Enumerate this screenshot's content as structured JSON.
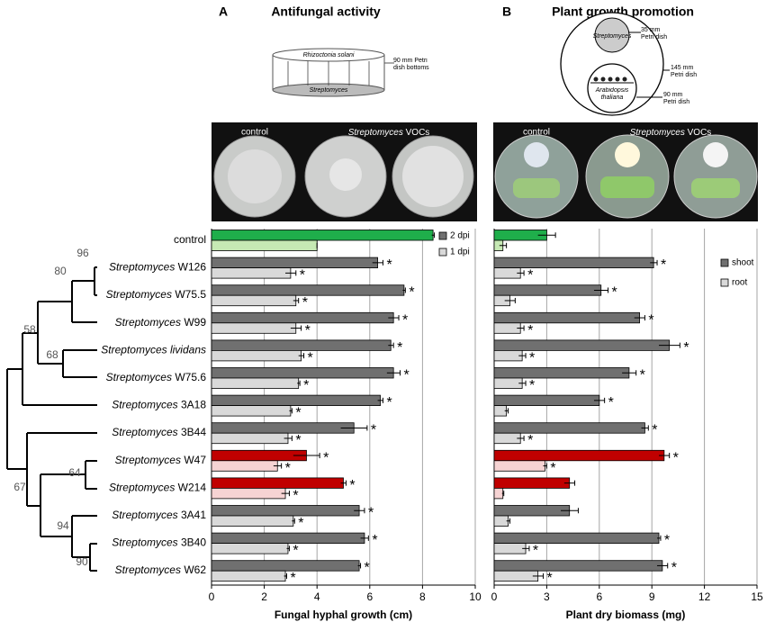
{
  "chart_data": [
    {
      "type": "bar",
      "orientation": "horizontal",
      "panel_label": "A",
      "title": "Antifungal activity",
      "x_label": "Fungal hyphal growth (cm)",
      "categories": [
        "control",
        "Streptomyces W126",
        "Streptomyces W75.5",
        "Streptomyces W99",
        "Streptomyces lividans",
        "Streptomyces W75.6",
        "Streptomyces 3A18",
        "Streptomyces 3B44",
        "Streptomyces W47",
        "Streptomyces W214",
        "Streptomyces 3A41",
        "Streptomyces 3B40",
        "Streptomyces W62"
      ],
      "series": [
        {
          "name": "2 dpi",
          "color": "#707070",
          "colors": [
            "#1fae4b",
            "#707070",
            "#707070",
            "#707070",
            "#707070",
            "#707070",
            "#707070",
            "#707070",
            "#c00000",
            "#c00000",
            "#707070",
            "#707070",
            "#707070"
          ],
          "values": [
            8.4,
            6.3,
            7.3,
            6.9,
            6.8,
            6.9,
            6.4,
            5.4,
            3.6,
            5.0,
            5.6,
            5.8,
            5.6
          ],
          "errors": [
            0.05,
            0.2,
            0.05,
            0.2,
            0.1,
            0.25,
            0.1,
            0.5,
            0.5,
            0.1,
            0.2,
            0.15,
            0.05
          ],
          "significance": [
            null,
            "*",
            "*",
            "*",
            "*",
            "*",
            "*",
            "*",
            "*",
            "*",
            "*",
            "*",
            "*"
          ]
        },
        {
          "name": "1 dpi",
          "color": "#d9d9d9",
          "colors": [
            "#c6e9b4",
            "#d9d9d9",
            "#d9d9d9",
            "#d9d9d9",
            "#d9d9d9",
            "#d9d9d9",
            "#d9d9d9",
            "#d9d9d9",
            "#f6d3d3",
            "#f6d3d3",
            "#d9d9d9",
            "#d9d9d9",
            "#d9d9d9"
          ],
          "values": [
            4.0,
            3.0,
            3.2,
            3.2,
            3.4,
            3.3,
            3.0,
            2.9,
            2.5,
            2.8,
            3.1,
            2.9,
            2.8
          ],
          "errors": [
            0,
            0.2,
            0.1,
            0.2,
            0.1,
            0.05,
            0.05,
            0.15,
            0.15,
            0.15,
            0.05,
            0.05,
            0.05
          ],
          "significance": [
            null,
            "*",
            "*",
            "*",
            "*",
            "*",
            "*",
            "*",
            "*",
            "*",
            "*",
            "*",
            "*"
          ]
        }
      ],
      "xlim": [
        0,
        10
      ],
      "xticks": [
        0,
        2,
        4,
        6,
        8,
        10
      ],
      "grid": true,
      "legend": "upper right"
    },
    {
      "type": "bar",
      "orientation": "horizontal",
      "panel_label": "B",
      "title": "Plant growth promotion",
      "x_label": "Plant dry biomass (mg)",
      "series": [
        {
          "name": "shoot",
          "color": "#707070",
          "colors": [
            "#1fae4b",
            "#707070",
            "#707070",
            "#707070",
            "#707070",
            "#707070",
            "#707070",
            "#707070",
            "#c00000",
            "#c00000",
            "#707070",
            "#707070",
            "#707070"
          ],
          "values": [
            3.0,
            9.1,
            6.1,
            8.3,
            10.0,
            7.7,
            6.0,
            8.6,
            9.7,
            4.3,
            4.3,
            9.4,
            9.6
          ],
          "errors": [
            0.5,
            0.2,
            0.4,
            0.3,
            0.6,
            0.4,
            0.3,
            0.2,
            0.3,
            0.3,
            0.5,
            0.1,
            0.3
          ],
          "significance": [
            null,
            "*",
            "*",
            "*",
            "*",
            "*",
            "*",
            "*",
            "*",
            null,
            null,
            "*",
            "*"
          ]
        },
        {
          "name": "root",
          "color": "#d9d9d9",
          "colors": [
            "#c6e9b4",
            "#d9d9d9",
            "#d9d9d9",
            "#d9d9d9",
            "#d9d9d9",
            "#d9d9d9",
            "#d9d9d9",
            "#d9d9d9",
            "#f6d3d3",
            "#f6d3d3",
            "#d9d9d9",
            "#d9d9d9",
            "#d9d9d9"
          ],
          "values": [
            0.5,
            1.5,
            0.9,
            1.5,
            1.6,
            1.6,
            0.7,
            1.5,
            2.9,
            0.5,
            0.8,
            1.8,
            2.5
          ],
          "errors": [
            0.2,
            0.2,
            0.3,
            0.2,
            0.2,
            0.2,
            0.1,
            0.2,
            0.1,
            0.05,
            0.1,
            0.2,
            0.3
          ],
          "significance": [
            null,
            "*",
            null,
            "*",
            "*",
            "*",
            null,
            "*",
            "*",
            null,
            null,
            "*",
            "*"
          ]
        }
      ],
      "xlim": [
        0,
        15
      ],
      "xticks": [
        0,
        3,
        6,
        9,
        12,
        15
      ],
      "grid": true,
      "legend": "upper right"
    }
  ],
  "phylogeny": {
    "support": [
      "96",
      "80",
      "58",
      "68",
      "64",
      "67",
      "94",
      "90"
    ]
  },
  "diagram_a": {
    "fungus": "Rhizoctonia solani",
    "bacterium": "Streptomyces",
    "dish": "90 mm Petri dish bottoms"
  },
  "diagram_b": {
    "bacterium": "Streptomyces",
    "small_dish": "35 mm Petri dish",
    "large_dish": "145 mm Petri dish",
    "plant": "Arabidopsis thaliana",
    "plate": "90 mm Petri dish"
  },
  "photo_a": {
    "control": "control",
    "treated": "Streptomyces VOCs"
  },
  "photo_b": {
    "control": "control",
    "treated": "Streptomyces VOCs"
  }
}
